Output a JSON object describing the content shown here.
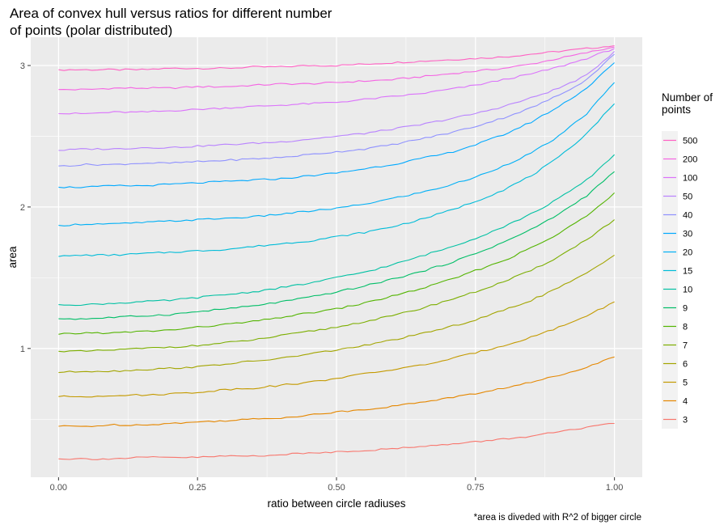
{
  "chart_data": {
    "type": "line",
    "title": "Area of convex hull versus ratios for different number\nof points (polar distributed)",
    "xlabel": "ratio between circle radiuses",
    "ylabel": "area",
    "caption": "*area is diveded with R^2 of bigger circle",
    "xlim": [
      -0.05,
      1.05
    ],
    "ylim": [
      0.09,
      3.2
    ],
    "x_ticks": [
      0.0,
      0.25,
      0.5,
      0.75,
      1.0
    ],
    "x_tick_labels": [
      "0.00",
      "0.25",
      "0.50",
      "0.75",
      "1.00"
    ],
    "y_ticks": [
      1,
      2,
      3
    ],
    "y_tick_labels": [
      "1",
      "2",
      "3"
    ],
    "grid": true,
    "legend": {
      "title": "Number of\n points",
      "placement": "right"
    },
    "x": [
      0.0,
      0.05,
      0.1,
      0.15,
      0.2,
      0.25,
      0.3,
      0.35,
      0.4,
      0.45,
      0.5,
      0.55,
      0.6,
      0.65,
      0.7,
      0.75,
      0.8,
      0.85,
      0.9,
      0.95,
      1.0
    ],
    "series": [
      {
        "name": "500",
        "color": "#FF61C3",
        "values": [
          2.97,
          2.97,
          2.97,
          2.97,
          2.98,
          2.98,
          2.98,
          2.99,
          2.99,
          3.0,
          3.0,
          3.01,
          3.02,
          3.03,
          3.04,
          3.05,
          3.06,
          3.08,
          3.1,
          3.12,
          3.14
        ]
      },
      {
        "name": "200",
        "color": "#F564E3",
        "values": [
          2.83,
          2.83,
          2.84,
          2.84,
          2.84,
          2.85,
          2.85,
          2.86,
          2.87,
          2.87,
          2.88,
          2.89,
          2.9,
          2.92,
          2.94,
          2.96,
          2.98,
          3.01,
          3.05,
          3.09,
          3.13
        ]
      },
      {
        "name": "100",
        "color": "#DB72FB",
        "values": [
          2.66,
          2.66,
          2.67,
          2.67,
          2.68,
          2.69,
          2.7,
          2.71,
          2.72,
          2.73,
          2.74,
          2.76,
          2.78,
          2.8,
          2.83,
          2.86,
          2.9,
          2.94,
          2.99,
          3.05,
          3.12
        ]
      },
      {
        "name": "50",
        "color": "#B983FF",
        "values": [
          2.4,
          2.41,
          2.41,
          2.42,
          2.42,
          2.43,
          2.44,
          2.45,
          2.46,
          2.48,
          2.5,
          2.52,
          2.55,
          2.58,
          2.62,
          2.66,
          2.71,
          2.77,
          2.84,
          2.93,
          3.1
        ]
      },
      {
        "name": "40",
        "color": "#8F91FF",
        "values": [
          2.29,
          2.3,
          2.3,
          2.31,
          2.31,
          2.32,
          2.33,
          2.34,
          2.35,
          2.37,
          2.39,
          2.41,
          2.44,
          2.48,
          2.52,
          2.57,
          2.63,
          2.7,
          2.79,
          2.9,
          3.08
        ]
      },
      {
        "name": "30",
        "color": "#00A9FF",
        "values": [
          2.14,
          2.14,
          2.15,
          2.15,
          2.16,
          2.17,
          2.18,
          2.19,
          2.2,
          2.22,
          2.24,
          2.27,
          2.3,
          2.34,
          2.38,
          2.44,
          2.51,
          2.6,
          2.71,
          2.84,
          3.02
        ]
      },
      {
        "name": "20",
        "color": "#00B0F6",
        "values": [
          1.87,
          1.88,
          1.88,
          1.89,
          1.9,
          1.91,
          1.92,
          1.93,
          1.95,
          1.97,
          1.99,
          2.02,
          2.06,
          2.1,
          2.15,
          2.21,
          2.29,
          2.38,
          2.5,
          2.66,
          2.88
        ]
      },
      {
        "name": "15",
        "color": "#00BCD8",
        "values": [
          1.65,
          1.66,
          1.66,
          1.67,
          1.68,
          1.69,
          1.7,
          1.72,
          1.74,
          1.76,
          1.79,
          1.82,
          1.86,
          1.91,
          1.97,
          2.04,
          2.12,
          2.22,
          2.35,
          2.52,
          2.73
        ]
      },
      {
        "name": "10",
        "color": "#00C1A3",
        "values": [
          1.31,
          1.31,
          1.32,
          1.33,
          1.34,
          1.36,
          1.38,
          1.4,
          1.43,
          1.46,
          1.5,
          1.54,
          1.59,
          1.65,
          1.71,
          1.78,
          1.86,
          1.95,
          2.06,
          2.19,
          2.37
        ]
      },
      {
        "name": "9",
        "color": "#00BE67",
        "values": [
          1.21,
          1.21,
          1.22,
          1.23,
          1.24,
          1.26,
          1.28,
          1.3,
          1.33,
          1.36,
          1.4,
          1.44,
          1.49,
          1.54,
          1.6,
          1.67,
          1.75,
          1.84,
          1.95,
          2.08,
          2.25
        ]
      },
      {
        "name": "8",
        "color": "#53B400",
        "values": [
          1.1,
          1.11,
          1.11,
          1.12,
          1.13,
          1.15,
          1.17,
          1.19,
          1.22,
          1.25,
          1.28,
          1.32,
          1.37,
          1.42,
          1.48,
          1.55,
          1.62,
          1.71,
          1.81,
          1.94,
          2.1
        ]
      },
      {
        "name": "7",
        "color": "#7CAE00",
        "values": [
          0.98,
          0.98,
          0.99,
          1.0,
          1.01,
          1.02,
          1.04,
          1.06,
          1.09,
          1.12,
          1.15,
          1.19,
          1.23,
          1.28,
          1.34,
          1.4,
          1.47,
          1.55,
          1.65,
          1.77,
          1.91
        ]
      },
      {
        "name": "6",
        "color": "#A3A500",
        "values": [
          0.83,
          0.84,
          0.84,
          0.85,
          0.86,
          0.87,
          0.89,
          0.91,
          0.93,
          0.96,
          0.99,
          1.02,
          1.06,
          1.1,
          1.15,
          1.2,
          1.27,
          1.34,
          1.43,
          1.53,
          1.66
        ]
      },
      {
        "name": "5",
        "color": "#C49A00",
        "values": [
          0.66,
          0.66,
          0.67,
          0.67,
          0.68,
          0.69,
          0.71,
          0.72,
          0.74,
          0.76,
          0.79,
          0.82,
          0.85,
          0.88,
          0.92,
          0.97,
          1.02,
          1.08,
          1.15,
          1.23,
          1.33
        ]
      },
      {
        "name": "4",
        "color": "#E58700",
        "values": [
          0.45,
          0.45,
          0.46,
          0.46,
          0.47,
          0.48,
          0.49,
          0.5,
          0.51,
          0.53,
          0.55,
          0.57,
          0.59,
          0.62,
          0.65,
          0.68,
          0.72,
          0.76,
          0.81,
          0.87,
          0.94
        ]
      },
      {
        "name": "3",
        "color": "#F8766D",
        "values": [
          0.22,
          0.22,
          0.22,
          0.23,
          0.23,
          0.23,
          0.24,
          0.24,
          0.25,
          0.26,
          0.27,
          0.28,
          0.29,
          0.31,
          0.32,
          0.34,
          0.36,
          0.38,
          0.41,
          0.44,
          0.47
        ]
      }
    ]
  }
}
